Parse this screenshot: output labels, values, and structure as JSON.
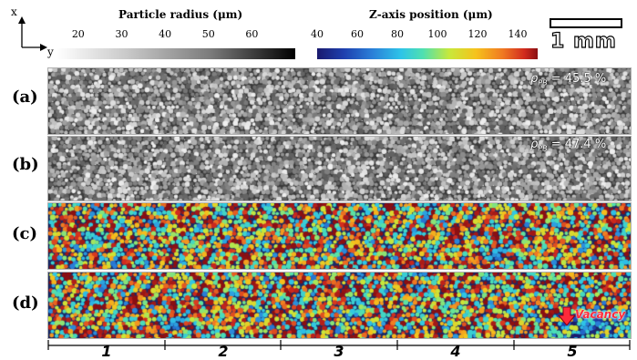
{
  "axes": {
    "x_label": "x",
    "y_label": "y"
  },
  "colorbar_gray": {
    "title": "Particle radius (μm)",
    "ticks": [
      "20",
      "30",
      "40",
      "50",
      "60"
    ],
    "range": [
      15,
      70
    ]
  },
  "colorbar_color": {
    "title": "Z-axis position (μm)",
    "ticks": [
      "40",
      "60",
      "80",
      "100",
      "120",
      "140"
    ],
    "range": [
      40,
      150
    ]
  },
  "scale_bar": {
    "label": "1 mm"
  },
  "panels": [
    {
      "label": "(a)",
      "type": "gray",
      "density_symbol": "ρ",
      "density_sub": "PB",
      "density_value": " = 45.5 %"
    },
    {
      "label": "(b)",
      "type": "gray",
      "density_symbol": "ρ",
      "density_sub": "PB",
      "density_value": " = 47.4 %"
    },
    {
      "label": "(c)",
      "type": "color"
    },
    {
      "label": "(d)",
      "type": "color",
      "annotation": "Vacancy"
    }
  ],
  "segments": [
    "1",
    "2",
    "3",
    "4",
    "5"
  ],
  "colors": {
    "vacancy_arrow": "#ff2a3a",
    "strip_border": "#b0b0b0"
  }
}
